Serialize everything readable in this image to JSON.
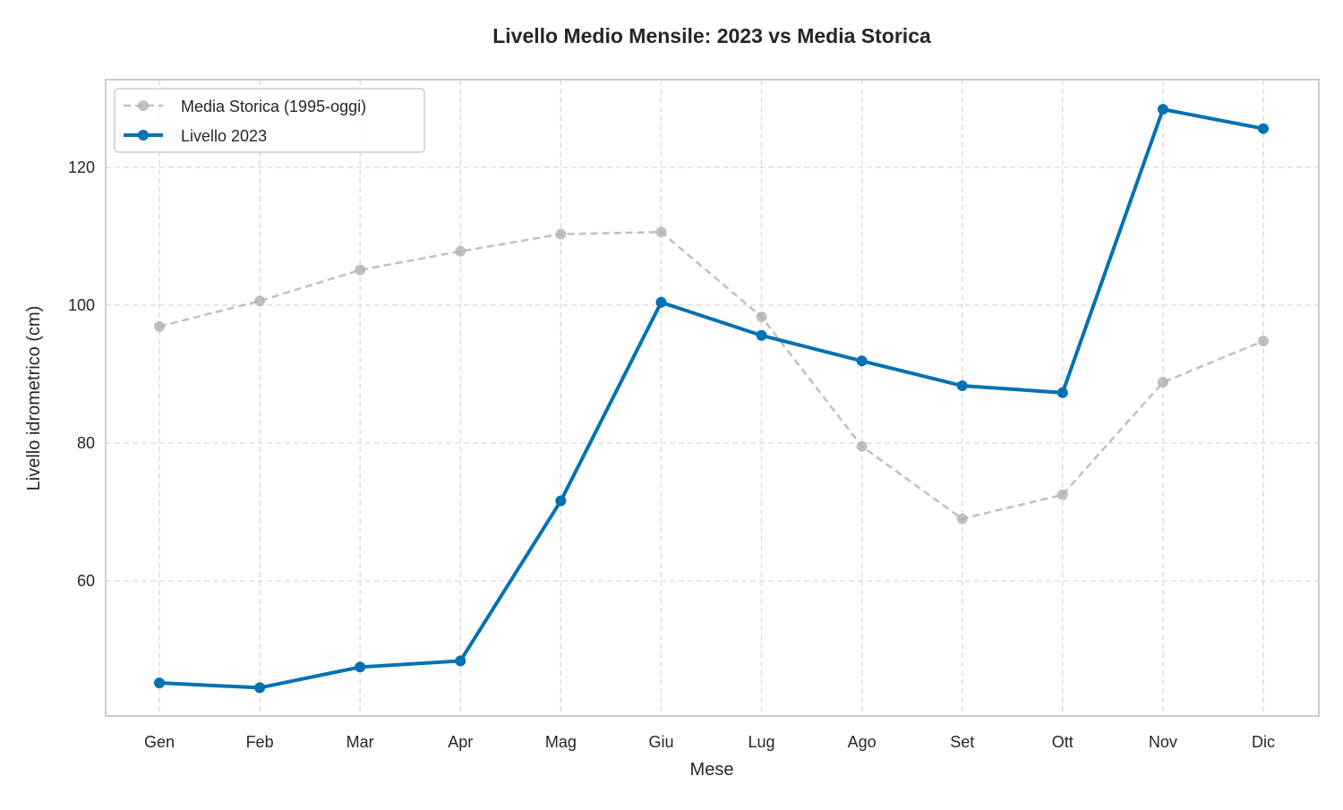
{
  "chart_data": {
    "type": "line",
    "title": "Livello Medio Mensile: 2023 vs Media Storica",
    "xlabel": "Mese",
    "ylabel": "Livello idrometrico (cm)",
    "categories": [
      "Gen",
      "Feb",
      "Mar",
      "Apr",
      "Mag",
      "Giu",
      "Lug",
      "Ago",
      "Set",
      "Ott",
      "Nov",
      "Dic"
    ],
    "yticks": [
      60,
      80,
      100,
      120
    ],
    "ylim": [
      40.4,
      132.7
    ],
    "grid": true,
    "legend_position": "top-left",
    "series": [
      {
        "name": "Media Storica (1995-oggi)",
        "color": "#b0b0b0",
        "style": "dashed",
        "values": [
          96.9,
          100.6,
          105.1,
          107.8,
          110.3,
          110.6,
          98.3,
          79.5,
          69.0,
          72.5,
          88.8,
          94.8
        ]
      },
      {
        "name": "Livello 2023",
        "color": "#0072b2",
        "style": "solid",
        "values": [
          45.2,
          44.5,
          47.5,
          48.4,
          71.6,
          100.4,
          95.6,
          91.9,
          88.3,
          87.3,
          128.4,
          125.6
        ]
      }
    ]
  }
}
